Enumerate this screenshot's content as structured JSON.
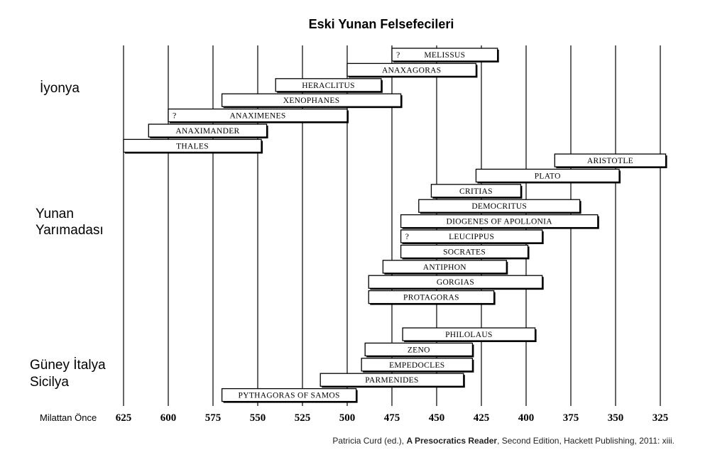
{
  "chart_data": {
    "type": "timeline",
    "title": "Eski Yunan Felsefecileri",
    "axis_label": "Milattan Önce",
    "xlim": [
      625,
      325
    ],
    "ticks": [
      625,
      600,
      575,
      550,
      525,
      500,
      475,
      450,
      425,
      400,
      375,
      350,
      325
    ],
    "regions": [
      {
        "name": "İyonya",
        "lines": [
          "İyonya"
        ],
        "bars": [
          {
            "name": "MELISSUS",
            "start": 475,
            "end": 416,
            "uncertain": true
          },
          {
            "name": "ANAXAGORAS",
            "start": 500,
            "end": 428,
            "uncertain": false
          },
          {
            "name": "HERACLITUS",
            "start": 540,
            "end": 481,
            "uncertain": false
          },
          {
            "name": "XENOPHANES",
            "start": 570,
            "end": 470,
            "uncertain": false
          },
          {
            "name": "ANAXIMENES",
            "start": 600,
            "end": 500,
            "uncertain": true
          },
          {
            "name": "ANAXIMANDER",
            "start": 611,
            "end": 545,
            "uncertain": false
          },
          {
            "name": "THALES",
            "start": 625,
            "end": 548,
            "uncertain": false
          }
        ]
      },
      {
        "name": "Yunan Yarımadası",
        "lines": [
          "Yunan",
          "Yarımadası"
        ],
        "bars": [
          {
            "name": "ARISTOTLE",
            "start": 384,
            "end": 322,
            "uncertain": false
          },
          {
            "name": "PLATO",
            "start": 428,
            "end": 348,
            "uncertain": false
          },
          {
            "name": "CRITIAS",
            "start": 453,
            "end": 403,
            "uncertain": false
          },
          {
            "name": "DEMOCRITUS",
            "start": 460,
            "end": 370,
            "uncertain": false
          },
          {
            "name": "DIOGENES OF APOLLONIA",
            "start": 470,
            "end": 360,
            "uncertain": false
          },
          {
            "name": "LEUCIPPUS",
            "start": 470,
            "end": 391,
            "uncertain": true
          },
          {
            "name": "SOCRATES",
            "start": 470,
            "end": 399,
            "uncertain": false
          },
          {
            "name": "ANTIPHON",
            "start": 480,
            "end": 411,
            "uncertain": false
          },
          {
            "name": "GORGIAS",
            "start": 488,
            "end": 391,
            "uncertain": false
          },
          {
            "name": "PROTAGORAS",
            "start": 488,
            "end": 418,
            "uncertain": false
          }
        ]
      },
      {
        "name": "Güney İtalya Sicilya",
        "lines": [
          "Güney İtalya",
          "Sicilya"
        ],
        "bars": [
          {
            "name": "PHILOLAUS",
            "start": 469,
            "end": 395,
            "uncertain": false
          },
          {
            "name": "ZENO",
            "start": 490,
            "end": 430,
            "uncertain": false
          },
          {
            "name": "EMPEDOCLES",
            "start": 492,
            "end": 430,
            "uncertain": false
          },
          {
            "name": "PARMENIDES",
            "start": 515,
            "end": 435,
            "uncertain": false
          },
          {
            "name": "PYTHAGORAS OF SAMOS",
            "start": 570,
            "end": 495,
            "uncertain": false
          }
        ]
      }
    ]
  },
  "source": {
    "prefix": "Patricia Curd (ed.), ",
    "book": "A Presocratics Reader",
    "suffix": ", Second Edition, Hackett Publishing, 2011: xiii."
  }
}
